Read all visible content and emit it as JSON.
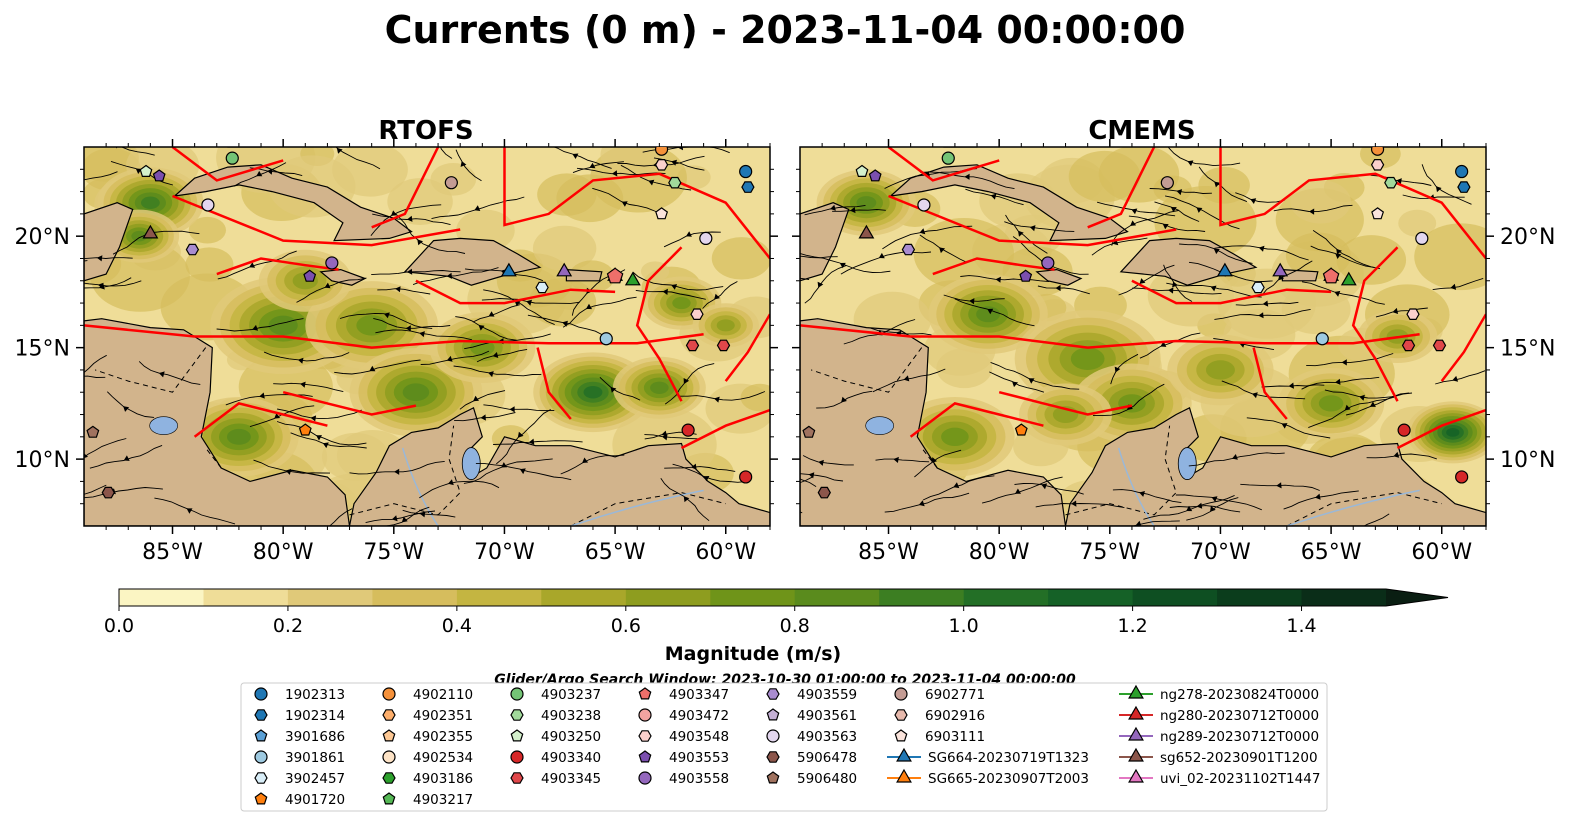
{
  "title": "Currents (0 m) - 2023-11-04 00:00:00",
  "chart_data": [
    {
      "type": "map",
      "title": "RTOFS",
      "lon_range": [
        -89,
        -58
      ],
      "lat_range": [
        7,
        24
      ],
      "lon_ticks": [
        "85°W",
        "80°W",
        "75°W",
        "70°W",
        "65°W",
        "60°W"
      ],
      "lat_ticks": [
        "20°N",
        "15°N",
        "10°N"
      ],
      "variable": "current magnitude with streamlines"
    },
    {
      "type": "map",
      "title": "CMEMS",
      "lon_range": [
        -89,
        -58
      ],
      "lat_range": [
        7,
        24
      ],
      "lon_ticks": [
        "85°W",
        "80°W",
        "75°W",
        "70°W",
        "65°W",
        "60°W"
      ],
      "lat_ticks": [
        "20°N",
        "15°N",
        "10°N"
      ],
      "variable": "current magnitude with streamlines"
    }
  ],
  "colorbar": {
    "label": "Magnitude (m/s)",
    "ticks": [
      "0.0",
      "0.2",
      "0.4",
      "0.6",
      "0.8",
      "1.0",
      "1.2",
      "1.4"
    ],
    "range": [
      0,
      1.5
    ],
    "extend": "max",
    "colors": [
      "#fbf5c3",
      "#efdd98",
      "#e0c979",
      "#d6bd5d",
      "#c4b541",
      "#a9a72a",
      "#8e9d1f",
      "#6f9419",
      "#5a8b1d",
      "#3c7e22",
      "#236f26",
      "#156127",
      "#0e4f22",
      "#0b3d1c",
      "#0a2d18",
      "#0a1e12"
    ]
  },
  "legend": {
    "title": "Glider/Argo Search Window: 2023-10-30 01:00:00 to 2023-11-04 00:00:00",
    "items": [
      {
        "label": "1902313",
        "marker": "circle",
        "color": "#1f77b4"
      },
      {
        "label": "1902314",
        "marker": "hexagon",
        "color": "#1f77b4"
      },
      {
        "label": "3901686",
        "marker": "pentagon",
        "color": "#5aa0d6"
      },
      {
        "label": "3901861",
        "marker": "circle",
        "color": "#9ecae1"
      },
      {
        "label": "3902457",
        "marker": "hexagon",
        "color": "#d9eef8"
      },
      {
        "label": "4901720",
        "marker": "pentagon",
        "color": "#ff7f0e"
      },
      {
        "label": "4902110",
        "marker": "circle",
        "color": "#f5913a"
      },
      {
        "label": "4902351",
        "marker": "hexagon",
        "color": "#fdae6b"
      },
      {
        "label": "4902355",
        "marker": "pentagon",
        "color": "#fdc894"
      },
      {
        "label": "4902534",
        "marker": "circle",
        "color": "#fde3c6"
      },
      {
        "label": "4903186",
        "marker": "hexagon",
        "color": "#2ca02c"
      },
      {
        "label": "4903217",
        "marker": "pentagon",
        "color": "#55b855"
      },
      {
        "label": "4903237",
        "marker": "circle",
        "color": "#74c476"
      },
      {
        "label": "4903238",
        "marker": "hexagon",
        "color": "#a1d99b"
      },
      {
        "label": "4903250",
        "marker": "pentagon",
        "color": "#d4f0cc"
      },
      {
        "label": "4903340",
        "marker": "circle",
        "color": "#d62728"
      },
      {
        "label": "4903345",
        "marker": "hexagon",
        "color": "#e0474a"
      },
      {
        "label": "4903347",
        "marker": "pentagon",
        "color": "#ef6f6a"
      },
      {
        "label": "4903472",
        "marker": "circle",
        "color": "#f4a3a0"
      },
      {
        "label": "4903548",
        "marker": "hexagon",
        "color": "#fbd0cc"
      },
      {
        "label": "4903553",
        "marker": "pentagon",
        "color": "#7b4fae"
      },
      {
        "label": "4903558",
        "marker": "circle",
        "color": "#9467bd"
      },
      {
        "label": "4903559",
        "marker": "hexagon",
        "color": "#a98ccf"
      },
      {
        "label": "4903561",
        "marker": "pentagon",
        "color": "#c5b0d5"
      },
      {
        "label": "4903563",
        "marker": "circle",
        "color": "#e3d6ee"
      },
      {
        "label": "5906478",
        "marker": "hexagon",
        "color": "#8c564b"
      },
      {
        "label": "5906480",
        "marker": "pentagon",
        "color": "#a0725f"
      },
      {
        "label": "6902771",
        "marker": "circle",
        "color": "#c49c94"
      },
      {
        "label": "6902916",
        "marker": "hexagon",
        "color": "#e7b9ac"
      },
      {
        "label": "6903111",
        "marker": "pentagon",
        "color": "#fbe4dc"
      },
      {
        "label": "SG664-20230719T1323",
        "marker": "triangle-line",
        "color": "#1f77b4"
      },
      {
        "label": "SG665-20230907T2003",
        "marker": "triangle-line",
        "color": "#ff7f0e"
      },
      {
        "label": "ng278-20230824T0000",
        "marker": "triangle-line",
        "color": "#2ca02c"
      },
      {
        "label": "ng280-20230712T0000",
        "marker": "triangle-line",
        "color": "#d62728"
      },
      {
        "label": "ng289-20230712T0000",
        "marker": "triangle-line",
        "color": "#9467bd"
      },
      {
        "label": "sg652-20230901T1200",
        "marker": "triangle-line",
        "color": "#8c564b"
      },
      {
        "label": "uvi_02-20231102T1447",
        "marker": "triangle-line",
        "color": "#e377c2"
      }
    ]
  },
  "colors": {
    "land": "#d2b48c",
    "water_lakes": "#8fb3e0",
    "boundaries": "#ff0000",
    "streamlines": "#000000"
  }
}
